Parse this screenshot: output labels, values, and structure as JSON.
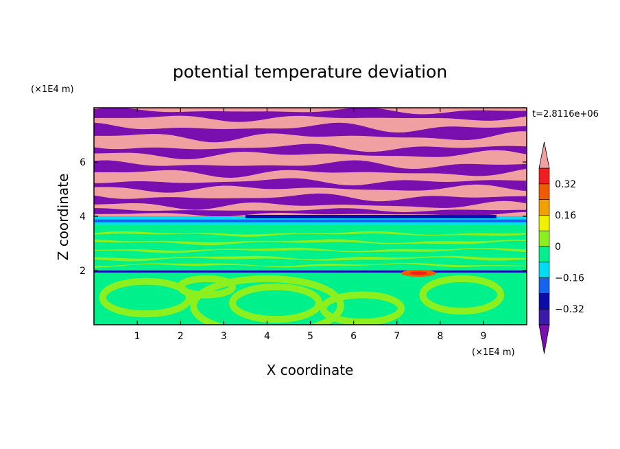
{
  "chart_data": {
    "type": "heatmap",
    "title": "potential temperature deviation",
    "xlabel": "X coordinate",
    "ylabel": "Z coordinate",
    "x_unit_label": "(×1E4 m)",
    "y_unit_label": "(×1E4 m)",
    "time_label": "t=2.8116e+06",
    "xlim": [
      0,
      10
    ],
    "ylim": [
      0,
      8
    ],
    "x_ticks": [
      {
        "value": 1,
        "label": "1"
      },
      {
        "value": 2,
        "label": "2"
      },
      {
        "value": 3,
        "label": "3"
      },
      {
        "value": 4,
        "label": "4"
      },
      {
        "value": 5,
        "label": "5"
      },
      {
        "value": 6,
        "label": "6"
      },
      {
        "value": 7,
        "label": "7"
      },
      {
        "value": 8,
        "label": "8"
      },
      {
        "value": 9,
        "label": "9"
      }
    ],
    "y_ticks": [
      {
        "value": 2,
        "label": "2"
      },
      {
        "value": 4,
        "label": "4"
      },
      {
        "value": 6,
        "label": "6"
      }
    ],
    "colorbar": {
      "levels": [
        -0.4,
        -0.32,
        -0.24,
        -0.16,
        -0.08,
        0,
        0.08,
        0.16,
        0.24,
        0.32,
        0.4
      ],
      "labels": [
        {
          "value": 0.32,
          "label": "0.32"
        },
        {
          "value": 0.16,
          "label": "0.16"
        },
        {
          "value": 0,
          "label": "0"
        },
        {
          "value": -0.16,
          "label": "−0.16"
        },
        {
          "value": -0.32,
          "label": "−0.32"
        }
      ],
      "colors": [
        "#7a0fb0",
        "#3a1aa8",
        "#0c0ca8",
        "#1464f0",
        "#00dcf0",
        "#00f08c",
        "#8cf01e",
        "#f0f000",
        "#f0a000",
        "#f05a00",
        "#f01e1e",
        "#f0a0a0"
      ],
      "extend": "both"
    },
    "fields": {
      "lower_region": {
        "z_range": [
          0,
          2
        ],
        "pattern": "green/light-green eddies",
        "values": [
          -0.08,
          0.08
        ]
      },
      "mid_region": {
        "z_range": [
          2,
          3.7
        ],
        "pattern": "green bands with light-green streaks",
        "values": [
          -0.08,
          0.08
        ]
      },
      "transition_band": {
        "z_range": [
          3.7,
          4.0
        ],
        "pattern": "cyan/blue layer",
        "values": [
          -0.24,
          -0.08
        ]
      },
      "upper_region": {
        "z_range": [
          4.0,
          8.0
        ],
        "pattern": "alternating pink and purple layers",
        "values": [
          -0.4,
          0.4
        ]
      }
    },
    "hot_spot": {
      "x": 7.5,
      "z": 1.9,
      "value": 0.32
    }
  }
}
